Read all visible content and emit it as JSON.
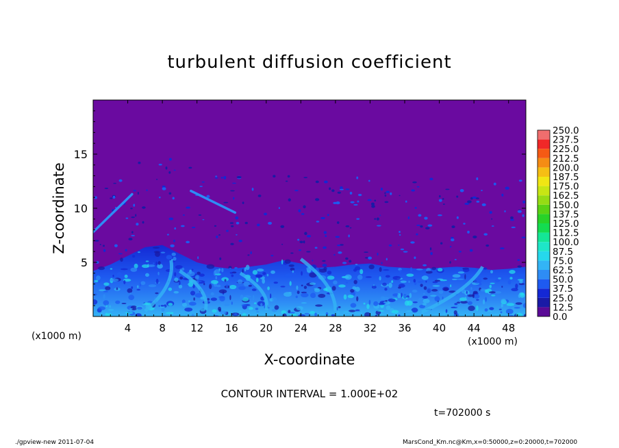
{
  "chart_data": {
    "type": "heatmap",
    "title": "turbulent diffusion coefficient",
    "xlabel": "X-coordinate",
    "ylabel": "Z-coordinate",
    "x_unit_label": "(x1000 m)",
    "y_unit_label": "(x1000 m)",
    "xlim": [
      0,
      50
    ],
    "ylim": [
      0,
      20
    ],
    "x_ticks": [
      4,
      8,
      12,
      16,
      20,
      24,
      28,
      32,
      36,
      40,
      44,
      48
    ],
    "y_ticks": [
      5,
      10,
      15
    ],
    "colorbar": {
      "levels": [
        "0.0",
        "12.5",
        "25.0",
        "37.5",
        "50.0",
        "62.5",
        "75.0",
        "87.5",
        "100.0",
        "112.5",
        "125.0",
        "137.5",
        "150.0",
        "162.5",
        "175.0",
        "187.5",
        "200.0",
        "212.5",
        "225.0",
        "237.5",
        "250.0"
      ],
      "colors": [
        "#5a0a96",
        "#1a1aa6",
        "#1428d4",
        "#1e5af0",
        "#2e8cf5",
        "#33b4f5",
        "#26d8ec",
        "#1ee6c8",
        "#14e696",
        "#14dc50",
        "#28d228",
        "#5ad214",
        "#96dc14",
        "#c8e614",
        "#f0e614",
        "#f5be14",
        "#f58c14",
        "#f55a14",
        "#f02828",
        "#f06e6e"
      ],
      "background_level_color": "#6a0aa0"
    },
    "field_description_points": {
      "turbulent_layer_top_km": [
        4.2,
        4.8,
        5.6,
        6.4,
        6.6,
        5.8,
        5.0,
        4.6,
        4.4,
        4.6,
        4.8,
        5.2,
        4.9,
        4.5,
        4.6,
        4.8,
        4.9,
        4.6,
        4.5,
        4.4,
        4.5,
        4.6,
        4.5,
        4.3,
        4.4,
        4.6
      ],
      "x_km": [
        0,
        2,
        4,
        6,
        8,
        10,
        12,
        14,
        16,
        18,
        20,
        22,
        24,
        26,
        28,
        30,
        32,
        34,
        36,
        38,
        40,
        42,
        44,
        46,
        48,
        50
      ]
    },
    "contour_interval_text": "CONTOUR INTERVAL = 1.000E+02",
    "time_text": "t=702000  s"
  },
  "footer": {
    "left": "./gpview-new  2011-07-04",
    "right": "MarsCond_Km.nc@Km,x=0:50000,z=0:20000,t=702000"
  }
}
